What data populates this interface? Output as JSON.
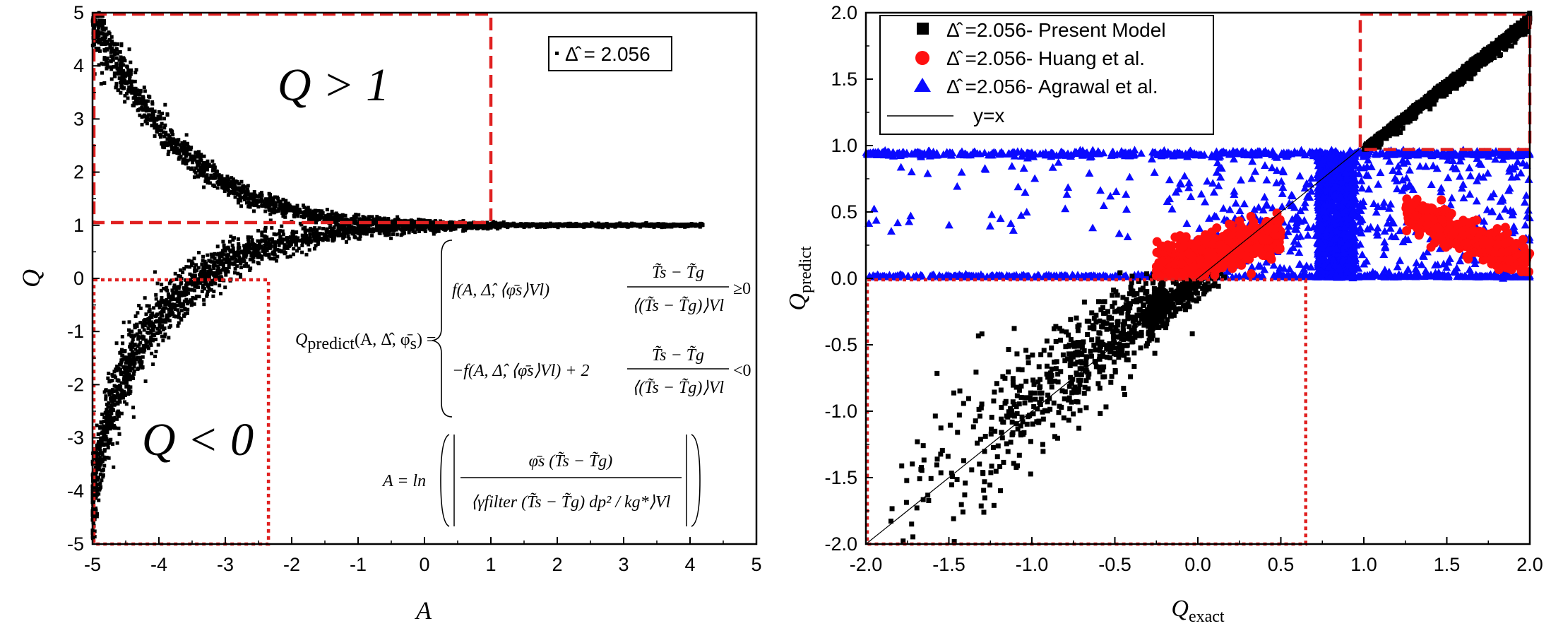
{
  "chart_data": [
    {
      "type": "scatter",
      "xlabel": "A",
      "ylabel": "Q",
      "xlim": [
        -5,
        5
      ],
      "ylim": [
        -5,
        5
      ],
      "xticks": [
        "-5",
        "-4",
        "-3",
        "-2",
        "-1",
        "0",
        "1",
        "2",
        "3",
        "4",
        "5"
      ],
      "yticks": [
        "-5",
        "-4",
        "-3",
        "-2",
        "-1",
        "0",
        "1",
        "2",
        "3",
        "4",
        "5"
      ],
      "legend": [
        "Δ̂ = 2.056"
      ],
      "legend_position": "top-right",
      "region_labels": [
        "Q > 1",
        "Q < 0"
      ],
      "regions": [
        {
          "label": "Q > 1",
          "x": [
            -5,
            1
          ],
          "y": [
            1.05,
            5.0
          ],
          "style": "dashed",
          "color": "#e02020"
        },
        {
          "label": "Q < 0",
          "x": [
            -5,
            -2.35
          ],
          "y": [
            -5.0,
            0
          ],
          "style": "dotted",
          "color": "#e02020"
        }
      ],
      "series": [
        {
          "name": "Δ̂ = 2.056",
          "marker": "square",
          "color": "#000000",
          "branches": [
            {
              "x": [
                -5.0,
                -4.8,
                -4.6,
                -4.4,
                -4.2,
                -4.0,
                -3.5,
                -3.0,
                -2.5,
                -2.0,
                -1.5,
                -1.0,
                0.0,
                1.0,
                2.0,
                3.0,
                4.2
              ],
              "y": [
                4.9,
                4.35,
                3.95,
                3.55,
                3.2,
                2.85,
                2.2,
                1.75,
                1.45,
                1.27,
                1.15,
                1.08,
                1.02,
                1.0,
                1.0,
                1.0,
                1.0
              ]
            },
            {
              "x": [
                -5.0,
                -4.8,
                -4.6,
                -4.4,
                -4.2,
                -4.0,
                -3.5,
                -3.0,
                -2.5,
                -2.0,
                -1.5,
                -1.0,
                0.0,
                1.0
              ],
              "y": [
                -4.2,
                -2.8,
                -2.0,
                -1.5,
                -1.1,
                -0.75,
                -0.15,
                0.3,
                0.55,
                0.72,
                0.82,
                0.9,
                0.97,
                1.0
              ]
            }
          ]
        }
      ],
      "equation_texts": {
        "lhs": "Q",
        "lhs_sub": "predict",
        "lhs_args": "(A, Δ̂, φ̄",
        "lhs_args_sub": "s",
        "lhs_close": ") =",
        "case1": "f(A, Δ̂, ⟨φ̄s⟩Vl)",
        "case2": "−f(A, Δ̂, ⟨φ̄s⟩Vl) + 2",
        "cond_num": "T̃s − T̃g",
        "cond_den": "⟨(T̃s − T̃g)⟩Vl",
        "cond1": "≥0",
        "cond2": "<0",
        "a_lhs": "A = ln",
        "a_num": "φ̄s (T̃s − T̃g)",
        "a_den": "⟨γfilter (T̃s − T̃g) dp² / kg*⟩Vl"
      }
    },
    {
      "type": "scatter",
      "xlabel": "Q",
      "xlabel_sub": "exact",
      "ylabel": "Q",
      "ylabel_sub": "predict",
      "xlim": [
        -2.0,
        2.0
      ],
      "ylim": [
        -2.0,
        2.0
      ],
      "xticks": [
        "-2.0",
        "-1.5",
        "-1.0",
        "-0.5",
        "0.0",
        "0.5",
        "1.0",
        "1.5",
        "2.0"
      ],
      "yticks": [
        "-2.0",
        "-1.5",
        "-1.0",
        "-0.5",
        "0.0",
        "0.5",
        "1.0",
        "1.5",
        "2.0"
      ],
      "legend_position": "top-left",
      "legend": [
        "Δ̂ =2.056- Present Model",
        "Δ̂ =2.056- Huang et al.",
        "Δ̂ =2.056- Agrawal et al.",
        "y=x"
      ],
      "regions": [
        {
          "x": [
            0.97,
            2.0
          ],
          "y": [
            0.97,
            2.0
          ],
          "style": "dashed",
          "color": "#e02020"
        },
        {
          "x": [
            -2.0,
            0.65
          ],
          "y": [
            -2.0,
            0.0
          ],
          "style": "dotted",
          "color": "#e02020"
        }
      ],
      "series": [
        {
          "name": "Δ̂ =2.056- Present Model",
          "marker": "square",
          "color": "#000000",
          "x": [
            -2.0,
            -1.5,
            -1.0,
            -0.5,
            0.0,
            0.5,
            1.0,
            1.5,
            2.0
          ],
          "y": [
            -1.9,
            -1.45,
            -0.95,
            -0.48,
            0.0,
            0.5,
            1.0,
            1.5,
            1.95
          ]
        },
        {
          "name": "Δ̂ =2.056- Huang et al.",
          "marker": "circle",
          "color": "#ff1010",
          "x": [
            -0.2,
            0.0,
            0.2,
            0.4,
            1.3,
            1.5,
            1.7,
            1.9
          ],
          "y": [
            0.05,
            0.15,
            0.3,
            0.35,
            0.5,
            0.4,
            0.25,
            0.1
          ]
        },
        {
          "name": "Δ̂ =2.056- Agrawal et al.",
          "marker": "triangle",
          "color": "#0a0aff",
          "x": [
            -2.0,
            -1.0,
            0.0,
            0.5,
            0.8,
            1.0,
            1.5,
            2.0
          ],
          "y": [
            0.95,
            0.95,
            0.95,
            0.5,
            0.5,
            0.95,
            0.5,
            0.02
          ]
        },
        {
          "name": "y=x",
          "marker": "line",
          "color": "#000000",
          "x": [
            -2.0,
            2.0
          ],
          "y": [
            -2.0,
            2.0
          ]
        }
      ]
    }
  ]
}
